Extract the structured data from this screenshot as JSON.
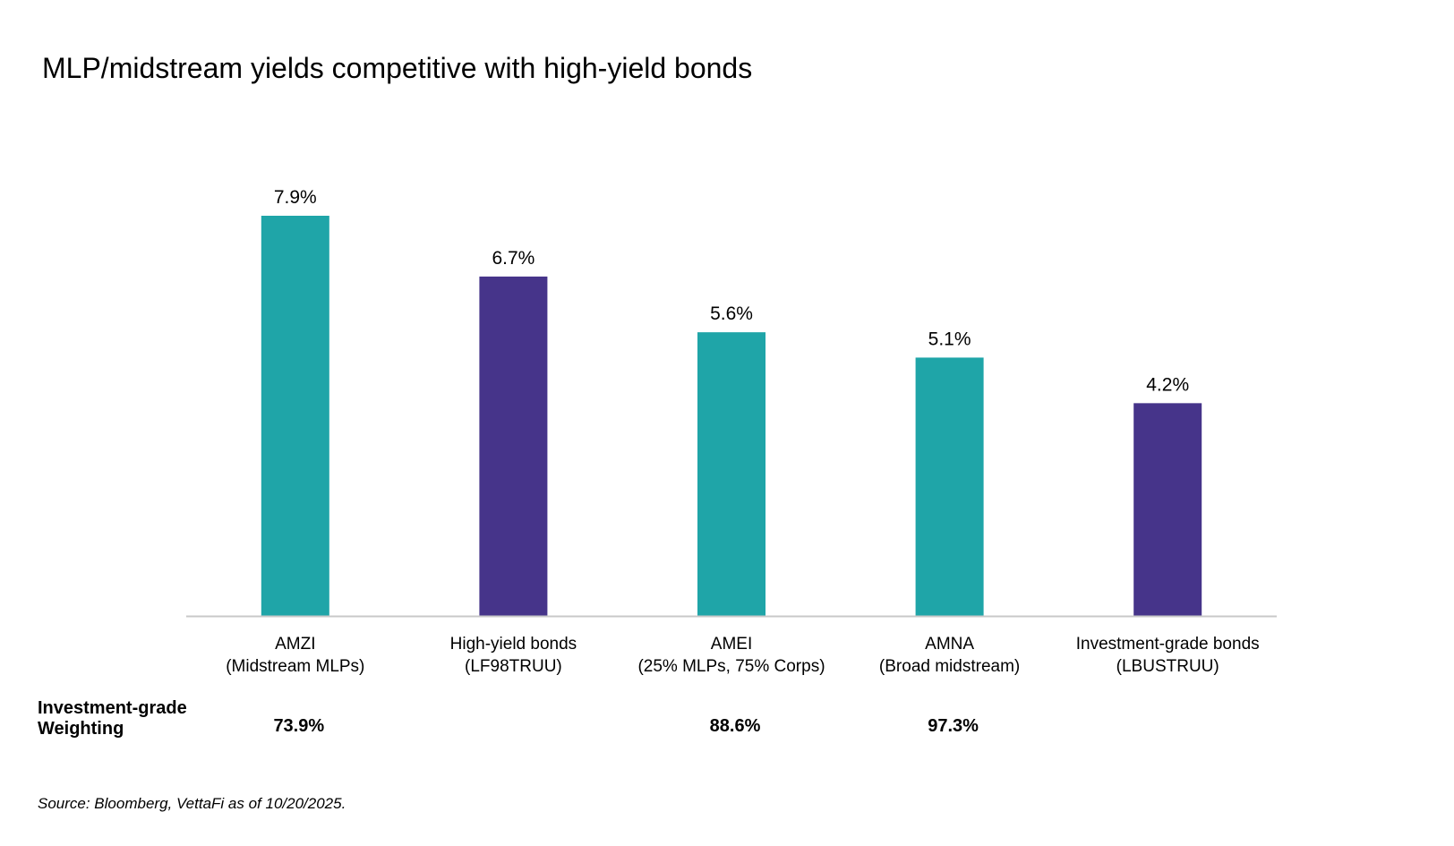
{
  "chart_data": {
    "type": "bar",
    "title": "MLP/midstream yields competitive with high-yield bonds",
    "categories": [
      [
        "AMZI",
        "(Midstream MLPs)"
      ],
      [
        "High-yield bonds",
        "(LF98TRUU)"
      ],
      [
        "AMEI",
        "(25% MLPs, 75% Corps)"
      ],
      [
        "AMNA",
        "(Broad midstream)"
      ],
      [
        "Investment-grade bonds",
        "(LBUSTRUU)"
      ]
    ],
    "values": [
      7.9,
      6.7,
      5.6,
      5.1,
      4.2
    ],
    "data_labels": [
      "7.9%",
      "6.7%",
      "5.6%",
      "5.1%",
      "4.2%"
    ],
    "bar_colors": [
      "#1fa5a8",
      "#46348a",
      "#1fa5a8",
      "#1fa5a8",
      "#46348a"
    ],
    "axis_line_color": "#c8c8c8",
    "ylim": [
      0,
      7.9
    ],
    "grid": false,
    "legend": "none"
  },
  "weighting_row": {
    "label": "Investment-grade\nWeighting",
    "values": [
      "73.9%",
      "",
      "88.6%",
      "97.3%",
      ""
    ]
  },
  "source": "Source: Bloomberg, VettaFi as of 10/20/2025."
}
